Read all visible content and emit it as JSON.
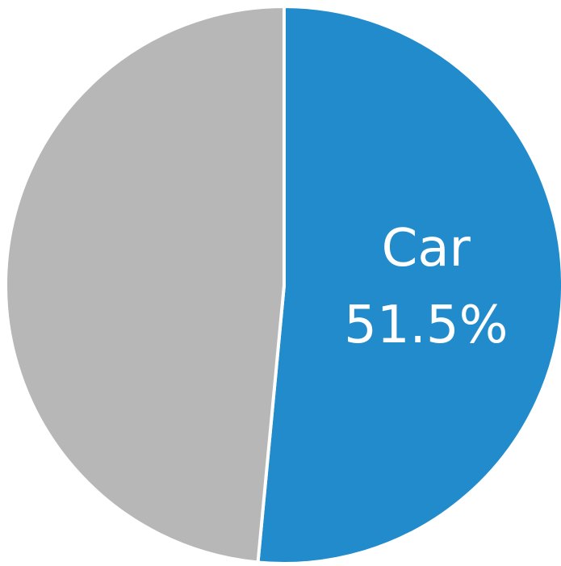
{
  "chart_data": {
    "type": "pie",
    "categories": [
      "Car",
      null
    ],
    "values": [
      51.5,
      48.5
    ],
    "value_labels": [
      "51.5%",
      null
    ],
    "colors": [
      "#228bcb",
      "#b7b7b7"
    ]
  }
}
